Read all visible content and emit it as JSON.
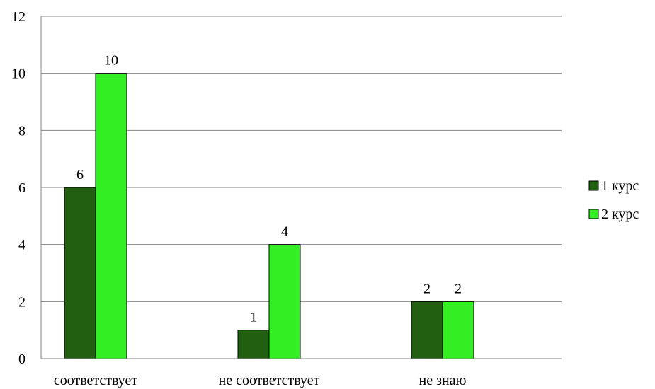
{
  "chart_data": {
    "type": "bar",
    "title": "",
    "xlabel": "",
    "ylabel": "",
    "categories": [
      "соответствует",
      "не соответствует",
      "не знаю"
    ],
    "series": [
      {
        "name": "1 курс",
        "values": [
          6,
          1,
          2
        ],
        "color": "#235f11"
      },
      {
        "name": "2 курс",
        "values": [
          10,
          4,
          2
        ],
        "color": "#33ee22"
      }
    ],
    "ylim": [
      0,
      12
    ],
    "yticks": [
      0,
      2,
      4,
      6,
      8,
      10,
      12
    ],
    "grid": true,
    "legend_position": "right"
  }
}
